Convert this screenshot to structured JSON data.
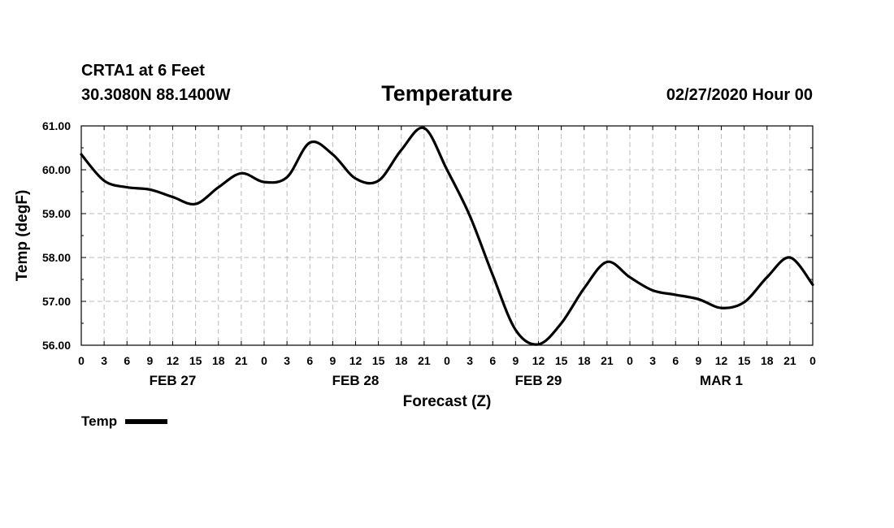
{
  "header": {
    "station": "CRTA1 at 6 Feet",
    "coords": "30.3080N 88.1400W",
    "title": "Temperature",
    "run_time": "02/27/2020 Hour 00"
  },
  "chart_data": {
    "type": "line",
    "title": "Temperature",
    "xlabel": "Forecast (Z)",
    "ylabel": "Temp (degF)",
    "ylim": [
      56.0,
      61.0
    ],
    "xlim": [
      0,
      96
    ],
    "x_unit": "hours since 02/27/2020 00Z",
    "yticks": [
      "56.00",
      "57.00",
      "58.00",
      "59.00",
      "60.00",
      "61.00"
    ],
    "xtick_labels": [
      "0",
      "3",
      "6",
      "9",
      "12",
      "15",
      "18",
      "21",
      "0",
      "3",
      "6",
      "9",
      "12",
      "15",
      "18",
      "21",
      "0",
      "3",
      "6",
      "9",
      "12",
      "15",
      "18",
      "21",
      "0",
      "3",
      "6",
      "9",
      "12",
      "15",
      "18",
      "21",
      "0"
    ],
    "day_labels": [
      {
        "label": "FEB 27",
        "hour": 12
      },
      {
        "label": "FEB 28",
        "hour": 36
      },
      {
        "label": "FEB 29",
        "hour": 60
      },
      {
        "label": "MAR 1",
        "hour": 84
      }
    ],
    "grid": true,
    "legend": "bottom-left",
    "series": [
      {
        "name": "Temp",
        "x": [
          0,
          3,
          6,
          9,
          12,
          15,
          18,
          21,
          24,
          27,
          30,
          33,
          36,
          39,
          42,
          45,
          48,
          51,
          54,
          57,
          60,
          63,
          66,
          69,
          72,
          75,
          78,
          81,
          84,
          87,
          90,
          93,
          96
        ],
        "values": [
          60.35,
          59.75,
          59.6,
          59.55,
          59.38,
          59.22,
          59.6,
          59.92,
          59.72,
          59.83,
          60.62,
          60.35,
          59.8,
          59.75,
          60.45,
          60.95,
          60.0,
          58.95,
          57.6,
          56.35,
          56.02,
          56.5,
          57.3,
          57.9,
          57.55,
          57.25,
          57.15,
          57.05,
          56.85,
          56.98,
          57.55,
          58.0,
          57.38
        ]
      }
    ]
  }
}
